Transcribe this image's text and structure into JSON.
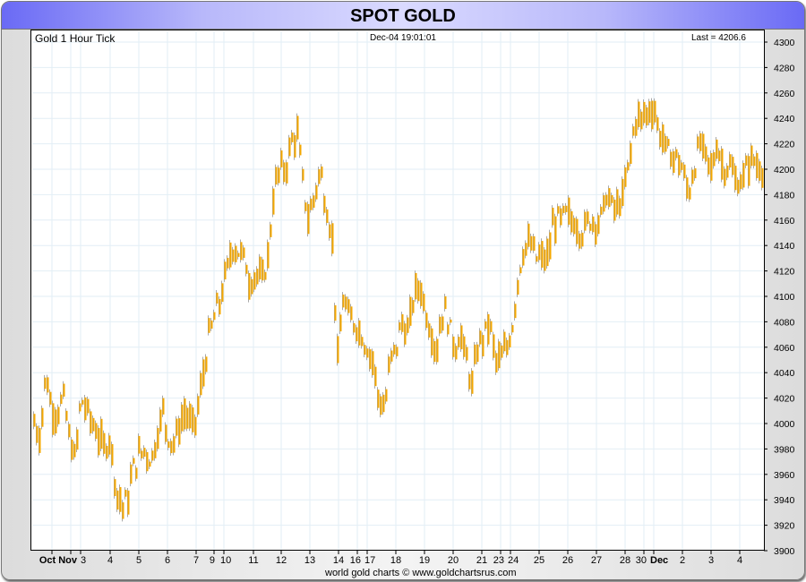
{
  "header": {
    "title": "SPOT GOLD"
  },
  "chart_data": {
    "type": "bar",
    "subtype": "high-low hourly tick",
    "title": "SPOT GOLD",
    "series_label": "Gold 1 Hour Tick",
    "timestamp": "Dec-04  19:01:01",
    "last_label": "Last = 4206.6",
    "last_value": 4206.6,
    "ylim": [
      3900,
      4300
    ],
    "yticks": [
      3900,
      3920,
      3940,
      3960,
      3980,
      4000,
      4020,
      4040,
      4060,
      4080,
      4100,
      4120,
      4140,
      4160,
      4180,
      4200,
      4220,
      4240,
      4260,
      4280,
      4300
    ],
    "xticks": [
      "Oct",
      "Nov",
      "3",
      "4",
      "5",
      "6",
      "7",
      "9",
      "10",
      "11",
      "12",
      "13",
      "14",
      "16",
      "17",
      "18",
      "19",
      "20",
      "21",
      "23",
      "24",
      "25",
      "26",
      "27",
      "28",
      "30",
      "Dec",
      "2",
      "3",
      "4"
    ],
    "bold_xticks": [
      "Oct",
      "Nov",
      "Dec"
    ],
    "grid": true,
    "series_color": "#f5a800",
    "values": [
      4000,
      3990,
      4040,
      4010,
      4010,
      4020,
      3990,
      3970,
      4020,
      4010,
      4000,
      3990,
      3980,
      3990,
      3950,
      3935,
      3940,
      3965,
      3975,
      3980,
      3970,
      3990,
      4010,
      3990,
      3985,
      4000,
      4010,
      3995,
      4010,
      4040,
      4070,
      4085,
      4100,
      4120,
      4140,
      4135,
      4130,
      4110,
      4120,
      4110,
      4130,
      4180,
      4200,
      4200,
      4220,
      4230,
      4190,
      4160,
      4180,
      4200,
      4170,
      4150,
      4050,
      4100,
      4080,
      4080,
      4070,
      4060,
      4050,
      4020,
      4010,
      4050,
      4060,
      4080,
      4070,
      4100,
      4110,
      4090,
      4070,
      4060,
      4090,
      4080,
      4060,
      4070,
      4050,
      4030,
      4060,
      4070,
      4080,
      4050,
      4050,
      4060,
      4080,
      4120,
      4140,
      4140,
      4130,
      4130,
      4130,
      4160,
      4160,
      4165,
      4160,
      4155,
      4150,
      4160,
      4160,
      4160,
      4180,
      4170,
      4170,
      4180,
      4210,
      4240,
      4240,
      4245,
      4250,
      4230,
      4220,
      4210,
      4210,
      4200,
      4180,
      4200,
      4220,
      4210,
      4200,
      4220,
      4200,
      4205,
      4190,
      4190,
      4200,
      4210,
      4200,
      4205
    ]
  },
  "footer": {
    "credit": "world gold charts © www.goldchartsrus.com"
  }
}
